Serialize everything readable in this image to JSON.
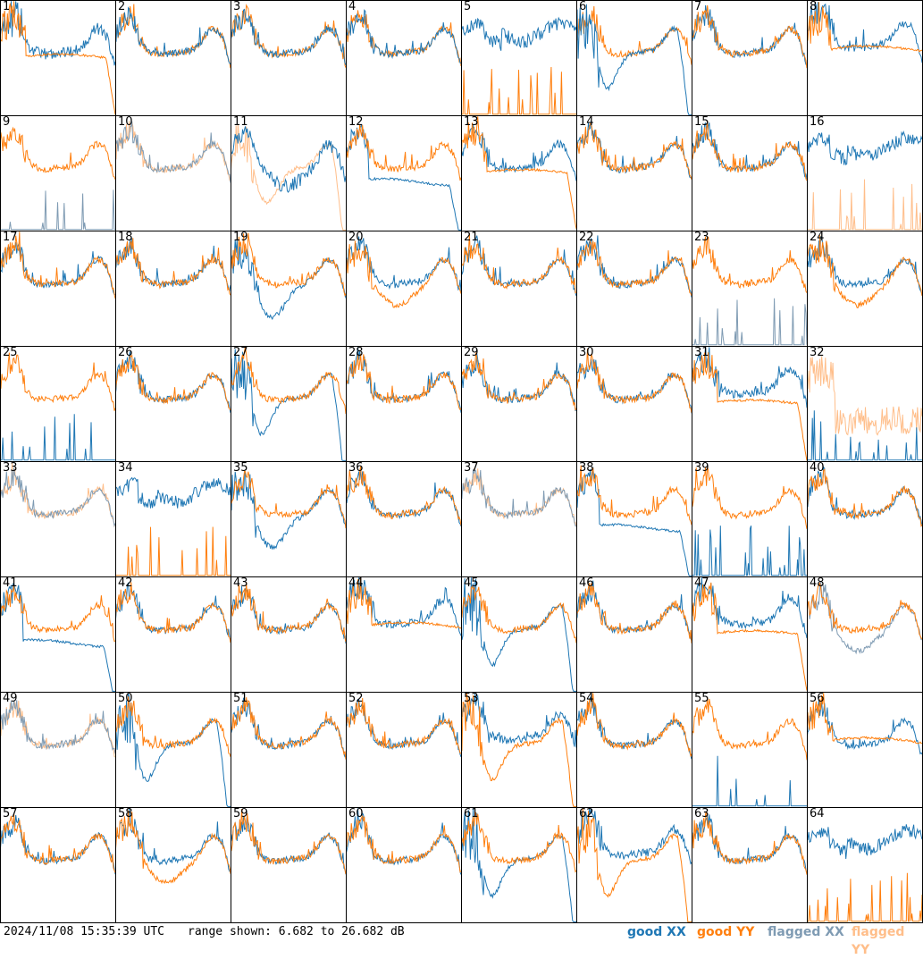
{
  "colors": {
    "good_xx": "#1f77b4",
    "good_yy": "#ff7f0e",
    "flagged_xx": "#7f9bb3",
    "flagged_yy": "#ffbe8a",
    "grid_line": "#000000"
  },
  "footer": {
    "timestamp": "2024/11/08 15:35:39 UTC",
    "range_text": "range shown: 6.682 to 26.682 dB",
    "legend_good_xx": "good XX",
    "legend_good_yy": "good YY",
    "legend_flagged_xx": "flagged XX",
    "legend_flagged_yy": "flagged YY"
  },
  "chart_data": {
    "type": "line",
    "layout": "8x8 small-multiples grid of per-input spectra",
    "ylim_db": [
      6.682,
      26.682
    ],
    "series_names": [
      "good XX",
      "good YY",
      "flagged XX",
      "flagged YY"
    ],
    "panels": [
      {
        "id": "1",
        "xx": "bumpy",
        "yy": "offset_lower_rolloff",
        "lead": "yy"
      },
      {
        "id": "2",
        "xx": "normal",
        "yy": "normal"
      },
      {
        "id": "3",
        "xx": "normal",
        "yy": "normal"
      },
      {
        "id": "4",
        "xx": "normal",
        "yy": "normal"
      },
      {
        "id": "5",
        "xx": "high_noisy",
        "yy": "spikes_flat_bottom"
      },
      {
        "id": "6",
        "xx": "deep_dip_rolloff",
        "yy": "normal"
      },
      {
        "id": "7",
        "xx": "normal",
        "yy": "normal",
        "lead": "yy"
      },
      {
        "id": "8",
        "xx": "normal_high",
        "yy": "offset_lower",
        "lead": "yy"
      },
      {
        "id": "9",
        "xx": "spikes_flat_bottom",
        "yy": "normal",
        "xx_flag": true,
        "lead": "yy"
      },
      {
        "id": "10",
        "xx": "normal",
        "yy": "normal",
        "xx_flag": true,
        "yy_flag": true
      },
      {
        "id": "11",
        "xx": "noisy_dip",
        "yy": "dip_rolloff",
        "yy_flag": true
      },
      {
        "id": "12",
        "xx": "flat_rolloff",
        "yy": "normal",
        "lead": "yy"
      },
      {
        "id": "13",
        "xx": "normal",
        "yy": "offset_lower_rolloff",
        "lead": "yy"
      },
      {
        "id": "14",
        "xx": "normal",
        "yy": "normal",
        "lead": "yy"
      },
      {
        "id": "15",
        "xx": "normal",
        "yy": "normal",
        "lead": "yy"
      },
      {
        "id": "16",
        "xx": "high_noisy",
        "yy": "spikes_flat_bottom",
        "yy_flag": true
      },
      {
        "id": "17",
        "xx": "normal",
        "yy": "normal",
        "lead": "yy"
      },
      {
        "id": "18",
        "xx": "normal",
        "yy": "normal",
        "lead": "yy"
      },
      {
        "id": "19",
        "xx": "deep_dip",
        "yy": "normal",
        "lead": "yy"
      },
      {
        "id": "20",
        "xx": "normal",
        "yy": "dip",
        "lead": "yy"
      },
      {
        "id": "21",
        "xx": "normal",
        "yy": "normal",
        "lead": "yy"
      },
      {
        "id": "22",
        "xx": "normal",
        "yy": "normal",
        "lead": "yy"
      },
      {
        "id": "23",
        "xx": "spikes_flat_bottom",
        "yy": "normal",
        "xx_flag": true,
        "lead": "yy"
      },
      {
        "id": "24",
        "xx": "normal",
        "yy": "dip",
        "lead": "yy"
      },
      {
        "id": "25",
        "xx": "spikes_flat_bottom",
        "yy": "normal",
        "lead": "yy"
      },
      {
        "id": "26",
        "xx": "normal",
        "yy": "normal",
        "lead": "yy"
      },
      {
        "id": "27",
        "xx": "deep_dip_rolloff",
        "yy": "normal",
        "lead": "yy"
      },
      {
        "id": "28",
        "xx": "normal",
        "yy": "normal",
        "lead": "yy"
      },
      {
        "id": "29",
        "xx": "normal",
        "yy": "normal",
        "lead": "yy"
      },
      {
        "id": "30",
        "xx": "normal",
        "yy": "normal",
        "lead": "yy"
      },
      {
        "id": "31",
        "xx": "normal_high",
        "yy": "offset_lower_rolloff",
        "lead": "yy"
      },
      {
        "id": "32",
        "xx": "spikes_flat_bottom",
        "yy": "noisy_high",
        "yy_flag": true
      },
      {
        "id": "33",
        "xx": "normal",
        "yy": "normal",
        "xx_flag": true,
        "yy_flag": true
      },
      {
        "id": "34",
        "xx": "high_noisy",
        "yy": "spikes_flat_bottom"
      },
      {
        "id": "35",
        "xx": "deep_dip",
        "yy": "normal",
        "lead": "yy"
      },
      {
        "id": "36",
        "xx": "normal",
        "yy": "normal",
        "lead": "yy"
      },
      {
        "id": "37",
        "xx": "normal",
        "yy": "normal",
        "xx_flag": true,
        "yy_flag": true
      },
      {
        "id": "38",
        "xx": "flat_rolloff",
        "yy": "normal",
        "lead": "yy"
      },
      {
        "id": "39",
        "xx": "spikes_flat_bottom",
        "yy": "normal",
        "lead": "yy"
      },
      {
        "id": "40",
        "xx": "normal",
        "yy": "normal",
        "lead": "yy"
      },
      {
        "id": "41",
        "xx": "flat_rolloff",
        "yy": "normal",
        "lead": "yy"
      },
      {
        "id": "42",
        "xx": "normal",
        "yy": "normal",
        "lead": "yy"
      },
      {
        "id": "43",
        "xx": "normal",
        "yy": "normal",
        "lead": "yy"
      },
      {
        "id": "44",
        "xx": "normal_high",
        "yy": "offset_lower",
        "lead": "yy"
      },
      {
        "id": "45",
        "xx": "deep_dip_rolloff",
        "yy": "normal",
        "lead": "yy"
      },
      {
        "id": "46",
        "xx": "normal",
        "yy": "normal",
        "lead": "yy"
      },
      {
        "id": "47",
        "xx": "normal_high",
        "yy": "offset_lower_rolloff",
        "lead": "yy"
      },
      {
        "id": "48",
        "xx": "dip",
        "yy": "normal",
        "xx_flag": true,
        "lead": "yy"
      },
      {
        "id": "49",
        "xx": "normal",
        "yy": "normal",
        "xx_flag": true,
        "yy_flag": true
      },
      {
        "id": "50",
        "xx": "deep_dip_rolloff",
        "yy": "normal",
        "lead": "yy"
      },
      {
        "id": "51",
        "xx": "normal",
        "yy": "normal",
        "lead": "yy"
      },
      {
        "id": "52",
        "xx": "normal",
        "yy": "normal",
        "lead": "yy"
      },
      {
        "id": "53",
        "xx": "normal_high",
        "yy": "deep_dip_rolloff",
        "lead": "yy"
      },
      {
        "id": "54",
        "xx": "normal",
        "yy": "normal",
        "lead": "yy"
      },
      {
        "id": "55",
        "xx": "spikes_flat_bottom",
        "yy": "normal",
        "lead": "yy"
      },
      {
        "id": "56",
        "xx": "normal",
        "yy": "offset_lower",
        "lead": "yy"
      },
      {
        "id": "57",
        "xx": "normal",
        "yy": "normal",
        "lead": "yy"
      },
      {
        "id": "58",
        "xx": "normal",
        "yy": "dip",
        "lead": "yy"
      },
      {
        "id": "59",
        "xx": "normal",
        "yy": "normal",
        "lead": "yy"
      },
      {
        "id": "60",
        "xx": "normal",
        "yy": "normal",
        "lead": "yy"
      },
      {
        "id": "61",
        "xx": "deep_dip_rolloff",
        "yy": "normal",
        "lead": "yy"
      },
      {
        "id": "62",
        "xx": "normal_high",
        "yy": "deep_dip_rolloff",
        "lead": "yy"
      },
      {
        "id": "63",
        "xx": "normal",
        "yy": "normal",
        "lead": "yy"
      },
      {
        "id": "64",
        "xx": "high_noisy",
        "yy": "spikes_flat_bottom"
      }
    ]
  }
}
